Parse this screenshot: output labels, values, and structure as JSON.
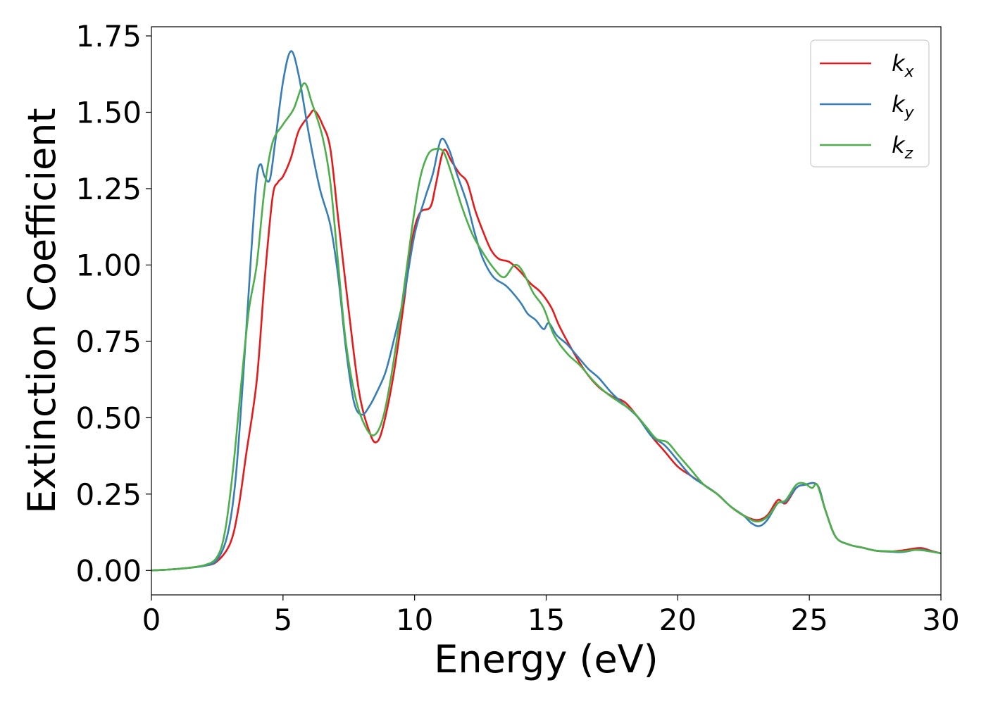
{
  "chart_data": {
    "type": "line",
    "title": "",
    "xlabel": "Energy (eV)",
    "ylabel": "Extinction Coefficient",
    "xlim": [
      0,
      30
    ],
    "ylim": [
      -0.08,
      1.78
    ],
    "xticks": [
      0,
      5,
      10,
      15,
      20,
      25,
      30
    ],
    "xtick_labels": [
      "0",
      "5",
      "10",
      "15",
      "20",
      "25",
      "30"
    ],
    "yticks": [
      0,
      0.25,
      0.5,
      0.75,
      1.0,
      1.25,
      1.5,
      1.75
    ],
    "ytick_labels": [
      "0.00",
      "0.25",
      "0.50",
      "0.75",
      "1.00",
      "1.25",
      "1.50",
      "1.75"
    ],
    "grid": false,
    "legend_position": "top-right",
    "series": [
      {
        "name": "k_x",
        "label_main": "k",
        "label_sub": "x",
        "color": "#e41a1c",
        "points": [
          [
            0,
            0.0
          ],
          [
            1,
            0.005
          ],
          [
            2,
            0.015
          ],
          [
            2.5,
            0.03
          ],
          [
            3,
            0.09
          ],
          [
            3.3,
            0.2
          ],
          [
            3.6,
            0.38
          ],
          [
            4.0,
            0.62
          ],
          [
            4.3,
            0.95
          ],
          [
            4.6,
            1.22
          ],
          [
            4.8,
            1.27
          ],
          [
            5.0,
            1.29
          ],
          [
            5.3,
            1.35
          ],
          [
            5.6,
            1.44
          ],
          [
            6.0,
            1.49
          ],
          [
            6.2,
            1.505
          ],
          [
            6.5,
            1.46
          ],
          [
            6.8,
            1.38
          ],
          [
            7.1,
            1.15
          ],
          [
            7.5,
            0.85
          ],
          [
            7.9,
            0.58
          ],
          [
            8.3,
            0.45
          ],
          [
            8.55,
            0.42
          ],
          [
            8.8,
            0.47
          ],
          [
            9.2,
            0.64
          ],
          [
            9.6,
            0.88
          ],
          [
            9.9,
            1.08
          ],
          [
            10.2,
            1.17
          ],
          [
            10.6,
            1.19
          ],
          [
            10.8,
            1.26
          ],
          [
            11.1,
            1.375
          ],
          [
            11.4,
            1.34
          ],
          [
            11.7,
            1.3
          ],
          [
            12.0,
            1.27
          ],
          [
            12.3,
            1.18
          ],
          [
            12.6,
            1.11
          ],
          [
            12.9,
            1.05
          ],
          [
            13.2,
            1.02
          ],
          [
            13.6,
            1.01
          ],
          [
            14.0,
            0.98
          ],
          [
            14.4,
            0.94
          ],
          [
            14.8,
            0.91
          ],
          [
            15.2,
            0.86
          ],
          [
            15.5,
            0.8
          ],
          [
            16.0,
            0.72
          ],
          [
            16.5,
            0.65
          ],
          [
            17.0,
            0.6
          ],
          [
            17.5,
            0.57
          ],
          [
            18.0,
            0.55
          ],
          [
            18.5,
            0.5
          ],
          [
            19.0,
            0.44
          ],
          [
            19.5,
            0.39
          ],
          [
            20.0,
            0.34
          ],
          [
            20.5,
            0.31
          ],
          [
            21.0,
            0.28
          ],
          [
            21.5,
            0.25
          ],
          [
            22.0,
            0.21
          ],
          [
            22.5,
            0.18
          ],
          [
            23.0,
            0.165
          ],
          [
            23.4,
            0.18
          ],
          [
            23.8,
            0.23
          ],
          [
            24.1,
            0.22
          ],
          [
            24.5,
            0.27
          ],
          [
            24.8,
            0.28
          ],
          [
            25.3,
            0.28
          ],
          [
            25.6,
            0.2
          ],
          [
            26.0,
            0.11
          ],
          [
            26.5,
            0.085
          ],
          [
            27.0,
            0.075
          ],
          [
            27.5,
            0.065
          ],
          [
            28.0,
            0.062
          ],
          [
            28.5,
            0.065
          ],
          [
            29.0,
            0.072
          ],
          [
            29.3,
            0.073
          ],
          [
            29.6,
            0.065
          ],
          [
            30.0,
            0.056
          ]
        ]
      },
      {
        "name": "k_y",
        "label_main": "k",
        "label_sub": "y",
        "color": "#377eb8",
        "points": [
          [
            0,
            0.0
          ],
          [
            1,
            0.005
          ],
          [
            2,
            0.015
          ],
          [
            2.5,
            0.035
          ],
          [
            2.9,
            0.12
          ],
          [
            3.2,
            0.3
          ],
          [
            3.5,
            0.65
          ],
          [
            3.8,
            1.05
          ],
          [
            4.0,
            1.28
          ],
          [
            4.15,
            1.33
          ],
          [
            4.3,
            1.29
          ],
          [
            4.5,
            1.28
          ],
          [
            4.7,
            1.4
          ],
          [
            5.0,
            1.6
          ],
          [
            5.3,
            1.7
          ],
          [
            5.6,
            1.62
          ],
          [
            6.0,
            1.42
          ],
          [
            6.4,
            1.25
          ],
          [
            6.8,
            1.13
          ],
          [
            7.1,
            0.96
          ],
          [
            7.4,
            0.72
          ],
          [
            7.7,
            0.55
          ],
          [
            8.0,
            0.51
          ],
          [
            8.3,
            0.54
          ],
          [
            8.6,
            0.59
          ],
          [
            8.9,
            0.65
          ],
          [
            9.2,
            0.75
          ],
          [
            9.6,
            0.9
          ],
          [
            10.0,
            1.1
          ],
          [
            10.4,
            1.22
          ],
          [
            10.7,
            1.3
          ],
          [
            11.0,
            1.41
          ],
          [
            11.3,
            1.38
          ],
          [
            11.6,
            1.3
          ],
          [
            12.0,
            1.2
          ],
          [
            12.3,
            1.1
          ],
          [
            12.6,
            1.02
          ],
          [
            13.0,
            0.96
          ],
          [
            13.5,
            0.93
          ],
          [
            14.0,
            0.88
          ],
          [
            14.3,
            0.84
          ],
          [
            14.6,
            0.82
          ],
          [
            14.9,
            0.79
          ],
          [
            15.1,
            0.81
          ],
          [
            15.4,
            0.77
          ],
          [
            15.8,
            0.74
          ],
          [
            16.2,
            0.7
          ],
          [
            16.6,
            0.66
          ],
          [
            17.0,
            0.63
          ],
          [
            17.5,
            0.58
          ],
          [
            18.0,
            0.54
          ],
          [
            18.5,
            0.5
          ],
          [
            19.0,
            0.44
          ],
          [
            19.5,
            0.41
          ],
          [
            20.0,
            0.36
          ],
          [
            20.5,
            0.31
          ],
          [
            21.0,
            0.28
          ],
          [
            21.5,
            0.25
          ],
          [
            22.0,
            0.21
          ],
          [
            22.5,
            0.18
          ],
          [
            22.8,
            0.155
          ],
          [
            23.1,
            0.145
          ],
          [
            23.4,
            0.165
          ],
          [
            23.8,
            0.22
          ],
          [
            24.1,
            0.225
          ],
          [
            24.5,
            0.27
          ],
          [
            24.8,
            0.28
          ],
          [
            25.3,
            0.28
          ],
          [
            25.6,
            0.2
          ],
          [
            26.0,
            0.11
          ],
          [
            26.5,
            0.085
          ],
          [
            27.0,
            0.075
          ],
          [
            27.5,
            0.065
          ],
          [
            28.0,
            0.062
          ],
          [
            28.5,
            0.06
          ],
          [
            29.0,
            0.067
          ],
          [
            29.3,
            0.068
          ],
          [
            29.6,
            0.063
          ],
          [
            30.0,
            0.056
          ]
        ]
      },
      {
        "name": "k_z",
        "label_main": "k",
        "label_sub": "z",
        "color": "#4daf4a",
        "points": [
          [
            0,
            0.0
          ],
          [
            1,
            0.005
          ],
          [
            2,
            0.017
          ],
          [
            2.5,
            0.045
          ],
          [
            2.8,
            0.13
          ],
          [
            3.1,
            0.33
          ],
          [
            3.4,
            0.6
          ],
          [
            3.7,
            0.85
          ],
          [
            4.0,
            1.0
          ],
          [
            4.3,
            1.25
          ],
          [
            4.6,
            1.4
          ],
          [
            5.0,
            1.46
          ],
          [
            5.4,
            1.51
          ],
          [
            5.8,
            1.595
          ],
          [
            6.1,
            1.53
          ],
          [
            6.5,
            1.42
          ],
          [
            6.8,
            1.27
          ],
          [
            7.1,
            1.0
          ],
          [
            7.4,
            0.74
          ],
          [
            7.8,
            0.55
          ],
          [
            8.2,
            0.46
          ],
          [
            8.5,
            0.445
          ],
          [
            8.8,
            0.5
          ],
          [
            9.1,
            0.63
          ],
          [
            9.5,
            0.86
          ],
          [
            9.9,
            1.12
          ],
          [
            10.2,
            1.28
          ],
          [
            10.5,
            1.36
          ],
          [
            10.8,
            1.38
          ],
          [
            11.1,
            1.37
          ],
          [
            11.4,
            1.3
          ],
          [
            11.8,
            1.19
          ],
          [
            12.2,
            1.1
          ],
          [
            12.6,
            1.04
          ],
          [
            13.0,
            0.99
          ],
          [
            13.4,
            0.96
          ],
          [
            13.8,
            1.0
          ],
          [
            14.1,
            0.98
          ],
          [
            14.5,
            0.91
          ],
          [
            14.9,
            0.86
          ],
          [
            15.3,
            0.77
          ],
          [
            15.8,
            0.71
          ],
          [
            16.3,
            0.67
          ],
          [
            16.8,
            0.62
          ],
          [
            17.3,
            0.58
          ],
          [
            17.8,
            0.55
          ],
          [
            18.3,
            0.52
          ],
          [
            18.8,
            0.47
          ],
          [
            19.2,
            0.43
          ],
          [
            19.6,
            0.42
          ],
          [
            20.0,
            0.38
          ],
          [
            20.5,
            0.33
          ],
          [
            21.0,
            0.28
          ],
          [
            21.5,
            0.25
          ],
          [
            22.0,
            0.21
          ],
          [
            22.5,
            0.18
          ],
          [
            23.0,
            0.16
          ],
          [
            23.4,
            0.175
          ],
          [
            23.8,
            0.22
          ],
          [
            24.1,
            0.23
          ],
          [
            24.5,
            0.28
          ],
          [
            24.8,
            0.285
          ],
          [
            25.1,
            0.27
          ],
          [
            25.3,
            0.28
          ],
          [
            25.6,
            0.2
          ],
          [
            26.0,
            0.11
          ],
          [
            26.5,
            0.085
          ],
          [
            27.0,
            0.075
          ],
          [
            27.5,
            0.065
          ],
          [
            28.0,
            0.063
          ],
          [
            28.5,
            0.062
          ],
          [
            29.0,
            0.067
          ],
          [
            29.3,
            0.066
          ],
          [
            29.6,
            0.062
          ],
          [
            30.0,
            0.056
          ]
        ]
      }
    ]
  }
}
